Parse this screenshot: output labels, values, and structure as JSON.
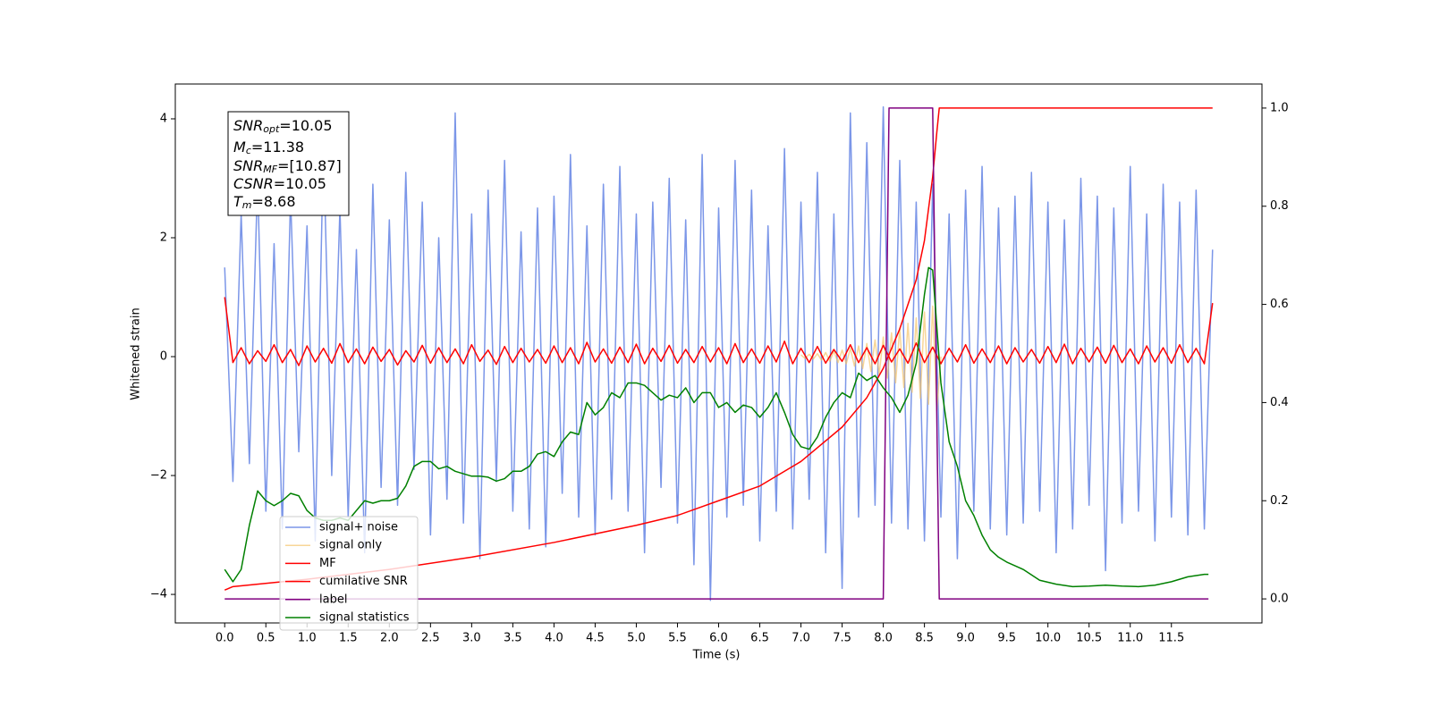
{
  "chart_data": {
    "type": "line",
    "xlabel": "Time (s)",
    "ylabel": "Whitened strain",
    "xlim": [
      -0.6,
      12.6
    ],
    "ylim": [
      -4.48,
      4.586
    ],
    "y2lim": [
      -0.049,
      1.049
    ],
    "xticks": [
      {
        "value": 0,
        "label": "0.0"
      },
      0.5,
      {
        "value": 1,
        "label": "1.0"
      },
      1.5,
      {
        "value": 2,
        "label": "2.0"
      },
      2.5,
      {
        "value": 3,
        "label": "3.0"
      },
      3.5,
      {
        "value": 4,
        "label": "4.0"
      },
      4.5,
      {
        "value": 5,
        "label": "5.0"
      },
      5.5,
      {
        "value": 6,
        "label": "6.0"
      },
      6.5,
      {
        "value": 7,
        "label": "7.0"
      },
      7.5,
      {
        "value": 8,
        "label": "8.0"
      },
      8.5,
      {
        "value": 9,
        "label": "9.0"
      },
      9.5,
      {
        "value": 10,
        "label": "10.0"
      },
      10.5,
      {
        "value": 11,
        "label": "11.0"
      },
      11.5
    ],
    "yticks": [
      {
        "value": -4,
        "label": "−4"
      },
      {
        "value": -2,
        "label": "−2"
      },
      0,
      2,
      4
    ],
    "y2ticks": [
      {
        "value": 0,
        "label": "0.0"
      },
      0.2,
      0.4,
      0.6,
      0.8,
      {
        "value": 1,
        "label": "1.0"
      }
    ],
    "legend": "lower left",
    "annotation": [
      {
        "main": "SNR",
        "sub": "opt",
        "rest": "=10.05"
      },
      {
        "main": "M",
        "sub": "c",
        "rest": "=11.38"
      },
      {
        "main": "SNR",
        "sub": "MF",
        "rest": "=[10.87]"
      },
      {
        "main": "CSNR",
        "rest": "=10.05"
      },
      {
        "main": "T",
        "sub": "m",
        "rest": "=8.68"
      }
    ],
    "x": [
      0,
      0.1,
      0.2,
      0.3,
      0.4,
      0.5,
      0.6,
      0.7,
      0.8,
      0.9,
      1,
      1.1,
      1.2,
      1.3,
      1.4,
      1.5,
      1.6,
      1.7,
      1.8,
      1.9,
      2,
      2.1,
      2.2,
      2.3,
      2.4,
      2.5,
      2.6,
      2.7,
      2.8,
      2.9,
      3,
      3.1,
      3.2,
      3.3,
      3.4,
      3.5,
      3.6,
      3.7,
      3.8,
      3.9,
      4,
      4.1,
      4.2,
      4.3,
      4.4,
      4.5,
      4.6,
      4.7,
      4.8,
      4.9,
      5,
      5.1,
      5.2,
      5.3,
      5.4,
      5.5,
      5.6,
      5.7,
      5.8,
      5.9,
      6,
      6.1,
      6.2,
      6.3,
      6.4,
      6.5,
      6.6,
      6.7,
      6.8,
      6.9,
      7,
      7.1,
      7.2,
      7.3,
      7.4,
      7.5,
      7.6,
      7.7,
      7.8,
      7.9,
      8,
      8.1,
      8.2,
      8.3,
      8.4,
      8.5,
      8.6,
      8.7,
      8.8,
      8.9,
      9,
      9.1,
      9.2,
      9.3,
      9.4,
      9.5,
      9.6,
      9.7,
      9.8,
      9.9,
      10,
      10.1,
      10.2,
      10.3,
      10.4,
      10.5,
      10.6,
      10.7,
      10.8,
      10.9,
      11,
      11.1,
      11.2,
      11.3,
      11.4,
      11.5,
      11.6,
      11.7,
      11.8,
      11.9,
      12
    ],
    "series": [
      {
        "name": "signal+ noise",
        "color": "#7b96e8",
        "values": [
          1.5,
          -2.1,
          2.4,
          -1.8,
          3.0,
          -2.6,
          1.9,
          -2.9,
          2.7,
          -1.6,
          2.2,
          -3.1,
          3.6,
          -2.0,
          2.5,
          -2.7,
          1.8,
          -3.3,
          2.9,
          -2.2,
          2.3,
          -2.5,
          3.1,
          -1.9,
          2.6,
          -3.0,
          2.0,
          -2.4,
          4.1,
          -2.8,
          2.4,
          -3.4,
          2.8,
          -2.1,
          3.3,
          -2.6,
          2.1,
          -2.9,
          2.5,
          -3.2,
          2.7,
          -2.3,
          3.4,
          -2.7,
          2.2,
          -3.0,
          2.9,
          -2.4,
          3.2,
          -2.6,
          2.4,
          -3.3,
          2.6,
          -2.2,
          3.0,
          -2.8,
          2.3,
          -3.5,
          3.4,
          -4.1,
          2.5,
          -2.7,
          3.3,
          -2.5,
          2.8,
          -3.1,
          2.2,
          -2.6,
          3.5,
          -2.9,
          2.6,
          -2.4,
          3.1,
          -3.3,
          2.4,
          -3.9,
          4.1,
          -2.7,
          3.6,
          -2.5,
          4.2,
          -2.8,
          3.3,
          -2.9,
          2.6,
          -3.1,
          2.9,
          -2.7,
          2.4,
          -3.4,
          2.8,
          -2.6,
          3.2,
          -2.9,
          2.5,
          -3.0,
          2.7,
          -2.8,
          3.1,
          -2.6,
          2.6,
          -3.3,
          2.3,
          -2.9,
          3.0,
          -2.5,
          2.7,
          -3.6,
          2.5,
          -2.8,
          3.2,
          -2.6,
          2.4,
          -3.1,
          2.9,
          -2.7,
          2.6,
          -3.0,
          2.8,
          -2.9,
          1.8
        ]
      },
      {
        "name": "signal only",
        "color": "#f5c060",
        "x": [
          7.0,
          7.05,
          7.1,
          7.15,
          7.2,
          7.25,
          7.3,
          7.35,
          7.4,
          7.45,
          7.5,
          7.55,
          7.6,
          7.65,
          7.7,
          7.75,
          7.8,
          7.85,
          7.9,
          7.95,
          8.0,
          8.05,
          8.1,
          8.15,
          8.2,
          8.25,
          8.3,
          8.35,
          8.4,
          8.45,
          8.5,
          8.55,
          8.6,
          8.65,
          8.7
        ],
        "values": [
          0.03,
          -0.03,
          0.04,
          -0.04,
          0.05,
          -0.06,
          0.07,
          -0.08,
          0.09,
          -0.1,
          0.11,
          -0.12,
          0.14,
          -0.16,
          0.18,
          -0.2,
          0.22,
          -0.25,
          0.28,
          -0.3,
          0.33,
          -0.36,
          0.4,
          -0.44,
          0.48,
          -0.52,
          0.56,
          -0.6,
          0.65,
          -0.7,
          0.75,
          -0.8,
          0.85,
          -0.9,
          0.0
        ]
      },
      {
        "name": "MF",
        "color": "#ff0000",
        "values": [
          1.0,
          -0.1,
          0.15,
          -0.12,
          0.1,
          -0.08,
          0.2,
          -0.1,
          0.12,
          -0.15,
          0.18,
          -0.09,
          0.14,
          -0.11,
          0.22,
          -0.1,
          0.13,
          -0.12,
          0.16,
          -0.08,
          0.12,
          -0.14,
          0.1,
          -0.09,
          0.19,
          -0.11,
          0.15,
          -0.1,
          0.13,
          -0.12,
          0.2,
          -0.08,
          0.11,
          -0.13,
          0.17,
          -0.1,
          0.14,
          -0.09,
          0.12,
          -0.11,
          0.18,
          -0.1,
          0.15,
          -0.12,
          0.24,
          -0.09,
          0.13,
          -0.11,
          0.16,
          -0.1,
          0.21,
          -0.12,
          0.14,
          -0.08,
          0.19,
          -0.11,
          0.12,
          -0.1,
          0.17,
          -0.09,
          0.15,
          -0.12,
          0.22,
          -0.1,
          0.13,
          -0.11,
          0.18,
          -0.09,
          0.26,
          -0.12,
          0.14,
          -0.1,
          0.17,
          -0.11,
          0.12,
          -0.08,
          0.2,
          -0.1,
          0.15,
          -0.12,
          0.19,
          -0.09,
          0.13,
          -0.11,
          0.23,
          -0.1,
          0.16,
          -0.12,
          0.14,
          -0.09,
          0.2,
          -0.11,
          0.13,
          -0.1,
          0.18,
          -0.12,
          0.15,
          -0.09,
          0.12,
          -0.11,
          0.17,
          -0.1,
          0.21,
          -0.12,
          0.14,
          -0.09,
          0.16,
          -0.11,
          0.19,
          -0.1,
          0.13,
          -0.12,
          0.18,
          -0.09,
          0.15,
          -0.11,
          0.2,
          -0.1,
          0.14,
          -0.12,
          0.9
        ]
      },
      {
        "name": "cumilative SNR",
        "color": "#ff0000",
        "axis": "y2",
        "x": [
          0,
          0.1,
          1,
          2,
          3,
          4,
          5,
          5.5,
          6,
          6.5,
          7,
          7.5,
          7.8,
          8.0,
          8.2,
          8.4,
          8.5,
          8.6,
          8.65,
          8.68,
          12
        ],
        "values": [
          0.018,
          0.025,
          0.04,
          0.06,
          0.085,
          0.115,
          0.15,
          0.17,
          0.2,
          0.23,
          0.28,
          0.35,
          0.41,
          0.47,
          0.55,
          0.65,
          0.73,
          0.86,
          0.95,
          1.0,
          1.0
        ]
      },
      {
        "name": "label",
        "color": "#800080",
        "axis": "y2",
        "x": [
          0,
          8.0,
          8.07,
          8.6,
          8.68,
          11.95
        ],
        "values": [
          0,
          0,
          1,
          1,
          0,
          0
        ]
      },
      {
        "name": "signal statistics",
        "color": "#008000",
        "axis": "y2",
        "x": [
          0,
          0.1,
          0.2,
          0.3,
          0.4,
          0.5,
          0.6,
          0.7,
          0.8,
          0.9,
          1.0,
          1.1,
          1.2,
          1.3,
          1.4,
          1.5,
          1.6,
          1.7,
          1.8,
          1.9,
          2.0,
          2.1,
          2.2,
          2.3,
          2.4,
          2.5,
          2.6,
          2.7,
          2.8,
          2.9,
          3.0,
          3.1,
          3.2,
          3.3,
          3.4,
          3.5,
          3.6,
          3.7,
          3.8,
          3.9,
          4.0,
          4.1,
          4.2,
          4.3,
          4.4,
          4.5,
          4.6,
          4.7,
          4.8,
          4.9,
          5.0,
          5.1,
          5.2,
          5.3,
          5.4,
          5.5,
          5.6,
          5.7,
          5.8,
          5.9,
          6.0,
          6.1,
          6.2,
          6.3,
          6.4,
          6.5,
          6.6,
          6.7,
          6.8,
          6.9,
          7.0,
          7.1,
          7.2,
          7.3,
          7.4,
          7.5,
          7.6,
          7.7,
          7.8,
          7.9,
          8.0,
          8.1,
          8.2,
          8.3,
          8.4,
          8.5,
          8.55,
          8.6,
          8.7,
          8.8,
          8.9,
          9.0,
          9.1,
          9.2,
          9.3,
          9.4,
          9.5,
          9.7,
          9.9,
          10.1,
          10.3,
          10.5,
          10.7,
          10.9,
          11.1,
          11.3,
          11.5,
          11.7,
          11.9,
          11.95
        ],
        "values": [
          0.06,
          0.035,
          0.06,
          0.15,
          0.22,
          0.2,
          0.19,
          0.2,
          0.215,
          0.21,
          0.18,
          0.165,
          0.16,
          0.16,
          0.165,
          0.16,
          0.18,
          0.2,
          0.195,
          0.2,
          0.2,
          0.205,
          0.23,
          0.27,
          0.28,
          0.28,
          0.265,
          0.27,
          0.26,
          0.255,
          0.25,
          0.25,
          0.248,
          0.24,
          0.245,
          0.26,
          0.26,
          0.27,
          0.295,
          0.3,
          0.29,
          0.32,
          0.34,
          0.335,
          0.4,
          0.375,
          0.39,
          0.42,
          0.41,
          0.44,
          0.44,
          0.435,
          0.42,
          0.405,
          0.415,
          0.41,
          0.43,
          0.4,
          0.42,
          0.42,
          0.39,
          0.4,
          0.38,
          0.395,
          0.39,
          0.37,
          0.39,
          0.42,
          0.38,
          0.335,
          0.31,
          0.305,
          0.33,
          0.37,
          0.4,
          0.42,
          0.41,
          0.46,
          0.445,
          0.455,
          0.43,
          0.41,
          0.38,
          0.415,
          0.48,
          0.62,
          0.675,
          0.67,
          0.44,
          0.32,
          0.27,
          0.2,
          0.17,
          0.13,
          0.1,
          0.085,
          0.075,
          0.06,
          0.038,
          0.03,
          0.025,
          0.026,
          0.028,
          0.026,
          0.025,
          0.028,
          0.035,
          0.045,
          0.05,
          0.05
        ]
      }
    ]
  }
}
